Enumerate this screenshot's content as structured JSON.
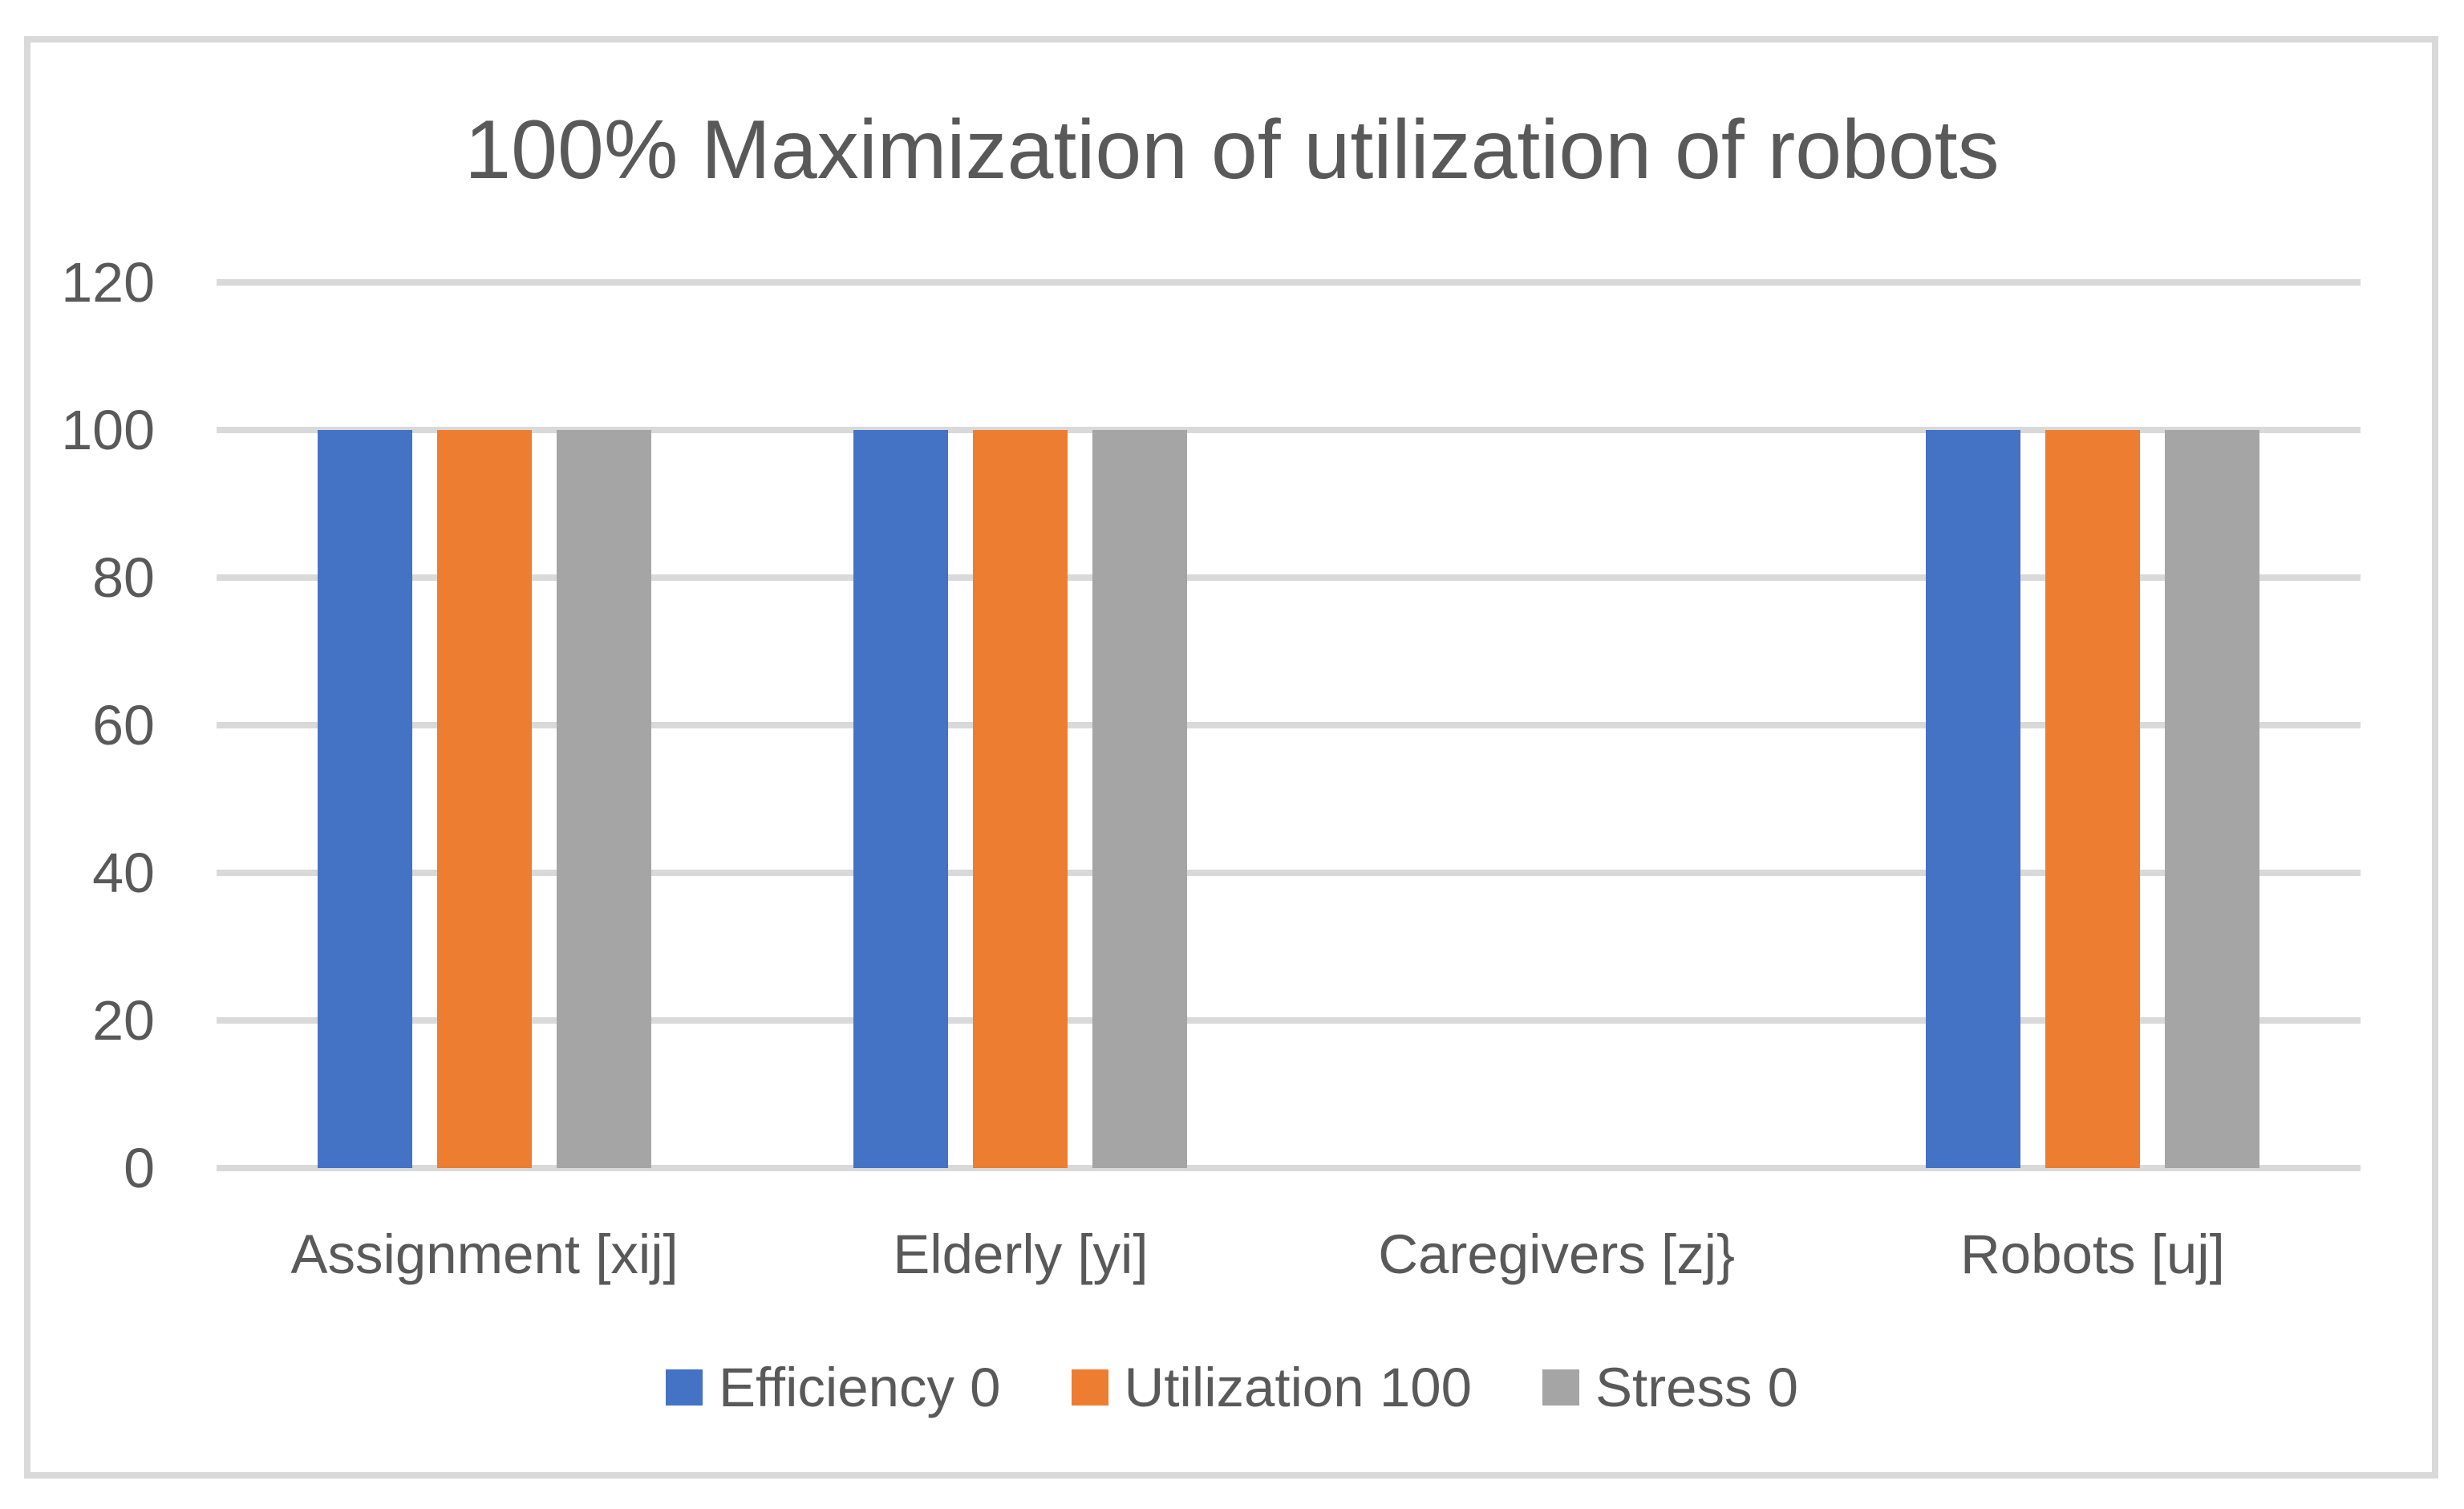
{
  "chart_data": {
    "type": "bar",
    "title": "100% Maximization of utilization of robots",
    "categories": [
      "Assignment [xij]",
      "Elderly [yi]",
      "Caregivers [zj}",
      "Robots [uj]"
    ],
    "series": [
      {
        "name": "Efficiency 0",
        "color": "#4472C4",
        "values": [
          100,
          100,
          0,
          100
        ]
      },
      {
        "name": "Utilization 100",
        "color": "#ED7D31",
        "values": [
          100,
          100,
          0,
          100
        ]
      },
      {
        "name": "Stress 0",
        "color": "#A5A5A5",
        "values": [
          100,
          100,
          0,
          100
        ]
      }
    ],
    "yticks": [
      0,
      20,
      40,
      60,
      80,
      100,
      120
    ],
    "ylim": [
      0,
      120
    ],
    "xlabel": "",
    "ylabel": "",
    "grid": true,
    "legend_position": "bottom",
    "colors": {
      "text": "#595959",
      "gridline": "#D9D9D9",
      "border": "#D9D9D9",
      "background": "#FFFFFF"
    }
  }
}
